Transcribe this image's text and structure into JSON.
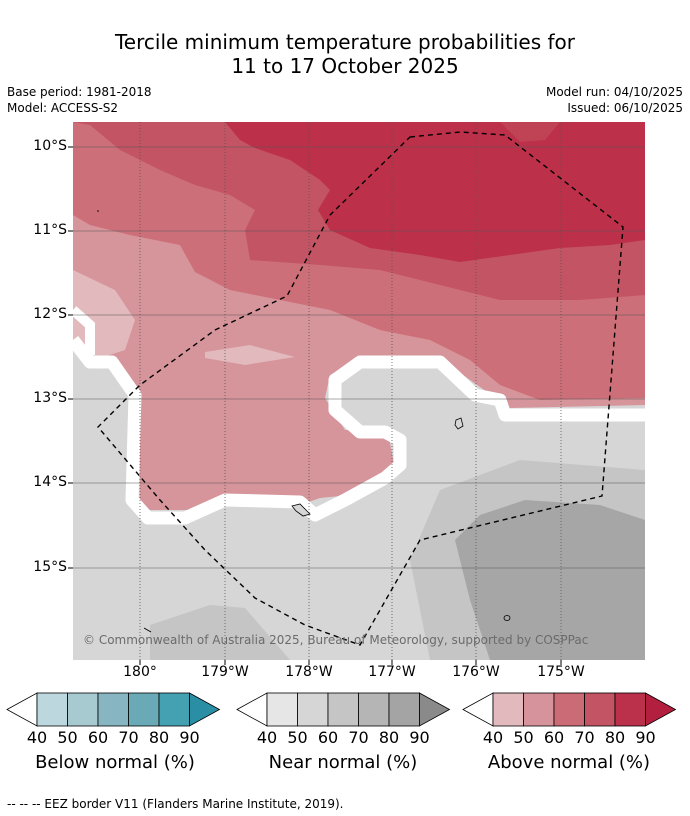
{
  "title": {
    "line1": "Tercile minimum temperature probabilities for",
    "line2": "11 to 17 October 2025"
  },
  "meta": {
    "base_period": "Base period: 1981-2018",
    "model": "Model: ACCESS-S2",
    "model_run": "Model run: 04/10/2025",
    "issued": "Issued: 06/10/2025"
  },
  "map": {
    "lat_labels": [
      "10°S",
      "11°S",
      "12°S",
      "13°S",
      "14°S",
      "15°S"
    ],
    "lon_labels": [
      "180°",
      "179°W",
      "178°W",
      "177°W",
      "176°W",
      "175°W"
    ],
    "copyright": "© Commonwealth of Australia 2025, Bureau of Meteorology, supported by COSPPac",
    "colors": {
      "above": [
        "#e2b9bd",
        "#d7939b",
        "#cb6b75",
        "#c35464",
        "#bb304a",
        "#b31f3e"
      ],
      "near": [
        "#e6e6e6",
        "#d6d6d6",
        "#c5c5c5",
        "#b5b5b5",
        "#a4a4a4",
        "#8a8a8a"
      ],
      "below": [
        "#bdd7de",
        "#a7c9d0",
        "#87b6c2",
        "#6aa9b6",
        "#44a1b2",
        "#2a8fa4"
      ]
    }
  },
  "legend": {
    "ticks": [
      "40",
      "50",
      "60",
      "70",
      "80",
      "90"
    ],
    "below_title": "Below normal (%)",
    "near_title": "Near normal (%)",
    "above_title": "Above normal (%)"
  },
  "footer": "-- -- -- EEZ border V11 (Flanders Marine Institute, 2019)."
}
